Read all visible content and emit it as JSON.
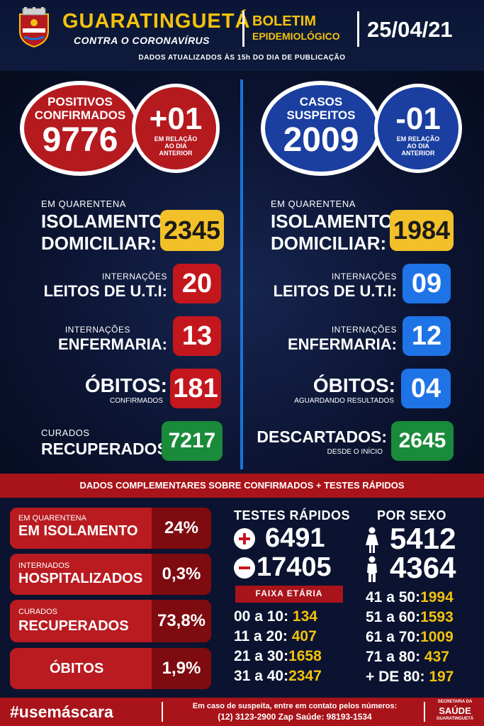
{
  "header": {
    "city": "GUARATINGUETÁ",
    "city_subtitle": "CONTRA O CORONAVÍRUS",
    "bulletin_title": "BOLETIM",
    "bulletin_subtitle": "EPIDEMIOLÓGICO",
    "date": "25/04/21",
    "updated_note": "DADOS ATUALIZADOS ÀS 15h DO DIA DE PUBLICAÇÃO",
    "crest_icon": "city-crest-icon"
  },
  "confirmed": {
    "circle_line1": "POSITIVOS",
    "circle_line2": "CONFIRMADOS",
    "total": "9776",
    "delta": "+01",
    "delta_line1": "EM RELAÇÃO",
    "delta_line2": "AO DIA",
    "delta_line3": "ANTERIOR",
    "quarantine_small": "EM QUARENTENA",
    "quarantine_big1": "ISOLAMENTO",
    "quarantine_big2": "DOMICILIAR:",
    "quarantine_value": "2345",
    "uti_small": "INTERNAÇÕES",
    "uti_big": "LEITOS DE U.T.I:",
    "uti_value": "20",
    "ward_small": "INTERNAÇÕES",
    "ward_big": "ENFERMARIA:",
    "ward_value": "13",
    "deaths_big": "ÓBITOS:",
    "deaths_small": "CONFIRMADOS",
    "deaths_value": "181",
    "cured_small": "CURADOS",
    "cured_big": "RECUPERADOS:",
    "cured_value": "7217"
  },
  "suspected": {
    "circle_line1": "CASOS",
    "circle_line2": "SUSPEITOS",
    "total": "2009",
    "delta": "-01",
    "delta_line1": "EM RELAÇÃO",
    "delta_line2": "AO DIA",
    "delta_line3": "ANTERIOR",
    "quarantine_small": "EM QUARENTENA",
    "quarantine_big1": "ISOLAMENTO",
    "quarantine_big2": "DOMICILIAR:",
    "quarantine_value": "1984",
    "uti_small": "INTERNAÇÕES",
    "uti_big": "LEITOS DE U.T.I:",
    "uti_value": "09",
    "ward_small": "INTERNAÇÕES",
    "ward_big": "ENFERMARIA:",
    "ward_value": "12",
    "deaths_big": "ÓBITOS:",
    "deaths_small": "AGUARDANDO RESULTADOS",
    "deaths_value": "04",
    "discarded_big": "DESCARTADOS:",
    "discarded_small": "DESDE O INÍCIO",
    "discarded_value": "2645"
  },
  "complementary": {
    "title": "DADOS COMPLEMENTARES SOBRE CONFIRMADOS + TESTES RÁPIDOS",
    "pills": [
      {
        "small": "EM QUARENTENA",
        "big": "EM ISOLAMENTO",
        "value": "24%"
      },
      {
        "small": "INTERNADOS",
        "big": "HOSPITALIZADOS",
        "value": "0,3%"
      },
      {
        "small": "CURADOS",
        "big": "RECUPERADOS",
        "value": "73,8%"
      },
      {
        "small": "",
        "big": "ÓBITOS",
        "value": "1,9%"
      }
    ],
    "tests_title": "TESTES RÁPIDOS",
    "tests_positive": "6491",
    "tests_negative": "17405",
    "age_title": "FAIXA ETÁRIA",
    "ages_left": [
      {
        "range": "00 a 10:",
        "value": "134"
      },
      {
        "range": "11 a 20:",
        "value": "407"
      },
      {
        "range": "21 a 30:",
        "value": "1658"
      },
      {
        "range": "31 a 40:",
        "value": "2347"
      }
    ],
    "sex_title": "POR SEXO",
    "female": "5412",
    "male": "4364",
    "ages_right": [
      {
        "range": "41 a 50:",
        "value": "1994"
      },
      {
        "range": "51 a 60:",
        "value": "1593"
      },
      {
        "range": "61 a 70:",
        "value": "1009"
      },
      {
        "range": "71 a 80:",
        "value": "437"
      },
      {
        "range": "+ DE 80:",
        "value": "197"
      }
    ]
  },
  "footer": {
    "hashtag": "#usemáscara",
    "contact_line1": "Em caso de suspeita, entre em contato pelos números:",
    "contact_line2": "(12) 3123-2900 Zap Saúde: 98193-1534",
    "sec_line1": "SECRETARIA DA",
    "sec_line2": "SAÚDE",
    "sec_line3": "GUARATINGUETÁ"
  },
  "colors": {
    "red": "#c4171d",
    "blue": "#1e74e6",
    "yellow": "#f2c029",
    "green": "#198b3a",
    "navy": "#0a1430"
  }
}
